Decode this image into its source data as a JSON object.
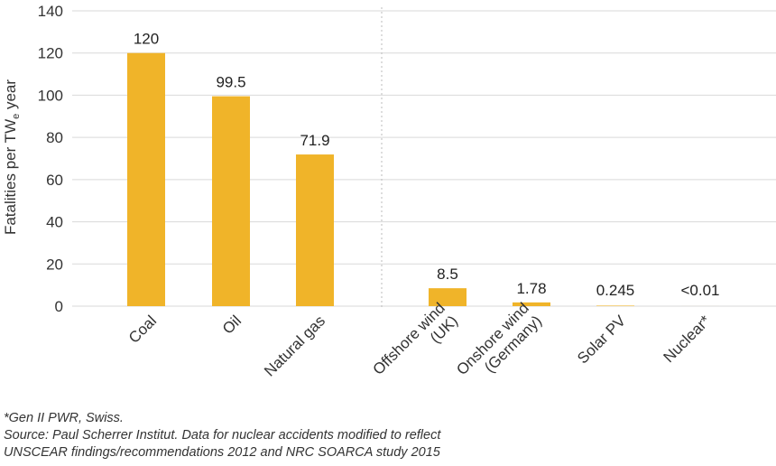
{
  "chart_data": {
    "type": "bar",
    "ylabel": "Fatalities per TW",
    "ylabel_sub": "e",
    "ylabel_suffix": " year",
    "ylim": [
      0,
      140
    ],
    "yticks": [
      "0",
      "20",
      "40",
      "60",
      "80",
      "100",
      "120",
      "140"
    ],
    "grid": true,
    "bar_color": "#f0b429",
    "categories": [
      {
        "label": [
          "Coal"
        ],
        "value": 120,
        "value_label": "120"
      },
      {
        "label": [
          "Oil"
        ],
        "value": 99.5,
        "value_label": "99.5"
      },
      {
        "label": [
          "Natural gas"
        ],
        "value": 71.9,
        "value_label": "71.9"
      },
      {
        "label": [
          "Offshore wind",
          "(UK)"
        ],
        "value": 8.5,
        "value_label": "8.5"
      },
      {
        "label": [
          "Onshore wind",
          "(Germany)"
        ],
        "value": 1.78,
        "value_label": "1.78"
      },
      {
        "label": [
          "Solar PV"
        ],
        "value": 0.245,
        "value_label": "0.245"
      },
      {
        "label": [
          "Nuclear*"
        ],
        "value": 0.01,
        "value_label": "<0.01"
      }
    ]
  },
  "notes": {
    "footnote": "*Gen II PWR, Swiss.",
    "source_line1": "Source: Paul Scherrer Institut. Data for nuclear accidents modified to reflect",
    "source_line2": "UNSCEAR findings/recommendations 2012 and NRC SOARCA study 2015"
  }
}
